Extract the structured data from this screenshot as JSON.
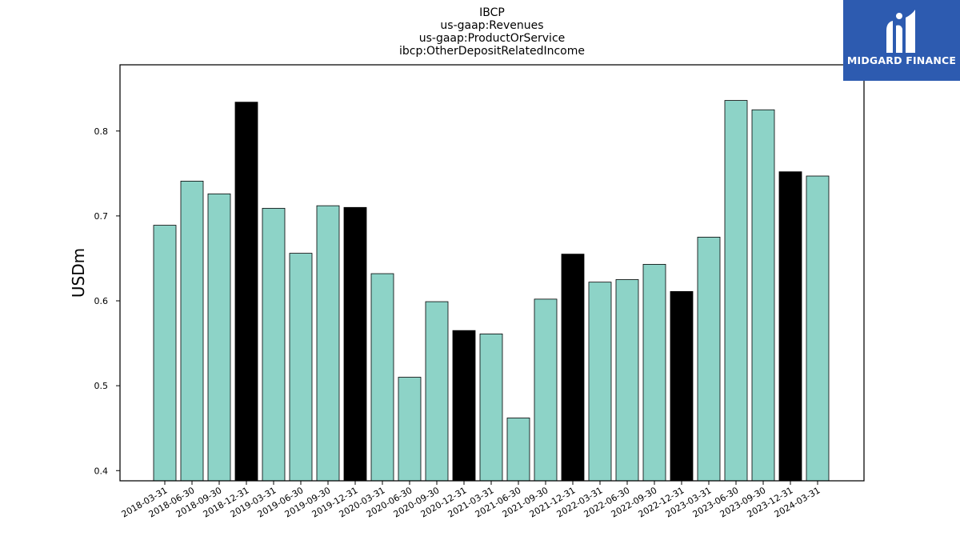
{
  "chart_data": {
    "type": "bar",
    "title_lines": [
      "IBCP",
      "us-gaap:Revenues",
      "us-gaap:ProductOrService",
      "ibcp:OtherDepositRelatedIncome"
    ],
    "xlabel": "",
    "ylabel": "USDm",
    "ylim": [
      0.388,
      0.878
    ],
    "yticks": [
      "0.4",
      "0.5",
      "0.6",
      "0.7",
      "0.8"
    ],
    "grid": false,
    "categories": [
      "2018-03-31",
      "2018-06-30",
      "2018-09-30",
      "2018-12-31",
      "2019-03-31",
      "2019-06-30",
      "2019-09-30",
      "2019-12-31",
      "2020-03-31",
      "2020-06-30",
      "2020-09-30",
      "2020-12-31",
      "2021-03-31",
      "2021-06-30",
      "2021-09-30",
      "2021-12-31",
      "2022-03-31",
      "2022-06-30",
      "2022-09-30",
      "2022-12-31",
      "2023-03-31",
      "2023-06-30",
      "2023-09-30",
      "2023-12-31",
      "2024-03-31"
    ],
    "values": [
      0.689,
      0.741,
      0.726,
      0.834,
      0.709,
      0.656,
      0.712,
      0.71,
      0.632,
      0.51,
      0.599,
      0.565,
      0.561,
      0.462,
      0.602,
      0.655,
      0.622,
      0.625,
      0.643,
      0.611,
      0.675,
      0.836,
      0.825,
      0.752,
      0.747
    ],
    "colors": {
      "default": "#8dd3c7",
      "q4": "#000000",
      "edge": "#000000"
    },
    "q4_categories": [
      "2018-12-31",
      "2019-12-31",
      "2020-12-31",
      "2021-12-31",
      "2022-12-31",
      "2023-12-31"
    ]
  },
  "logo": {
    "text": "MIDGARD FINANCE",
    "background": "#2d5bb0"
  }
}
